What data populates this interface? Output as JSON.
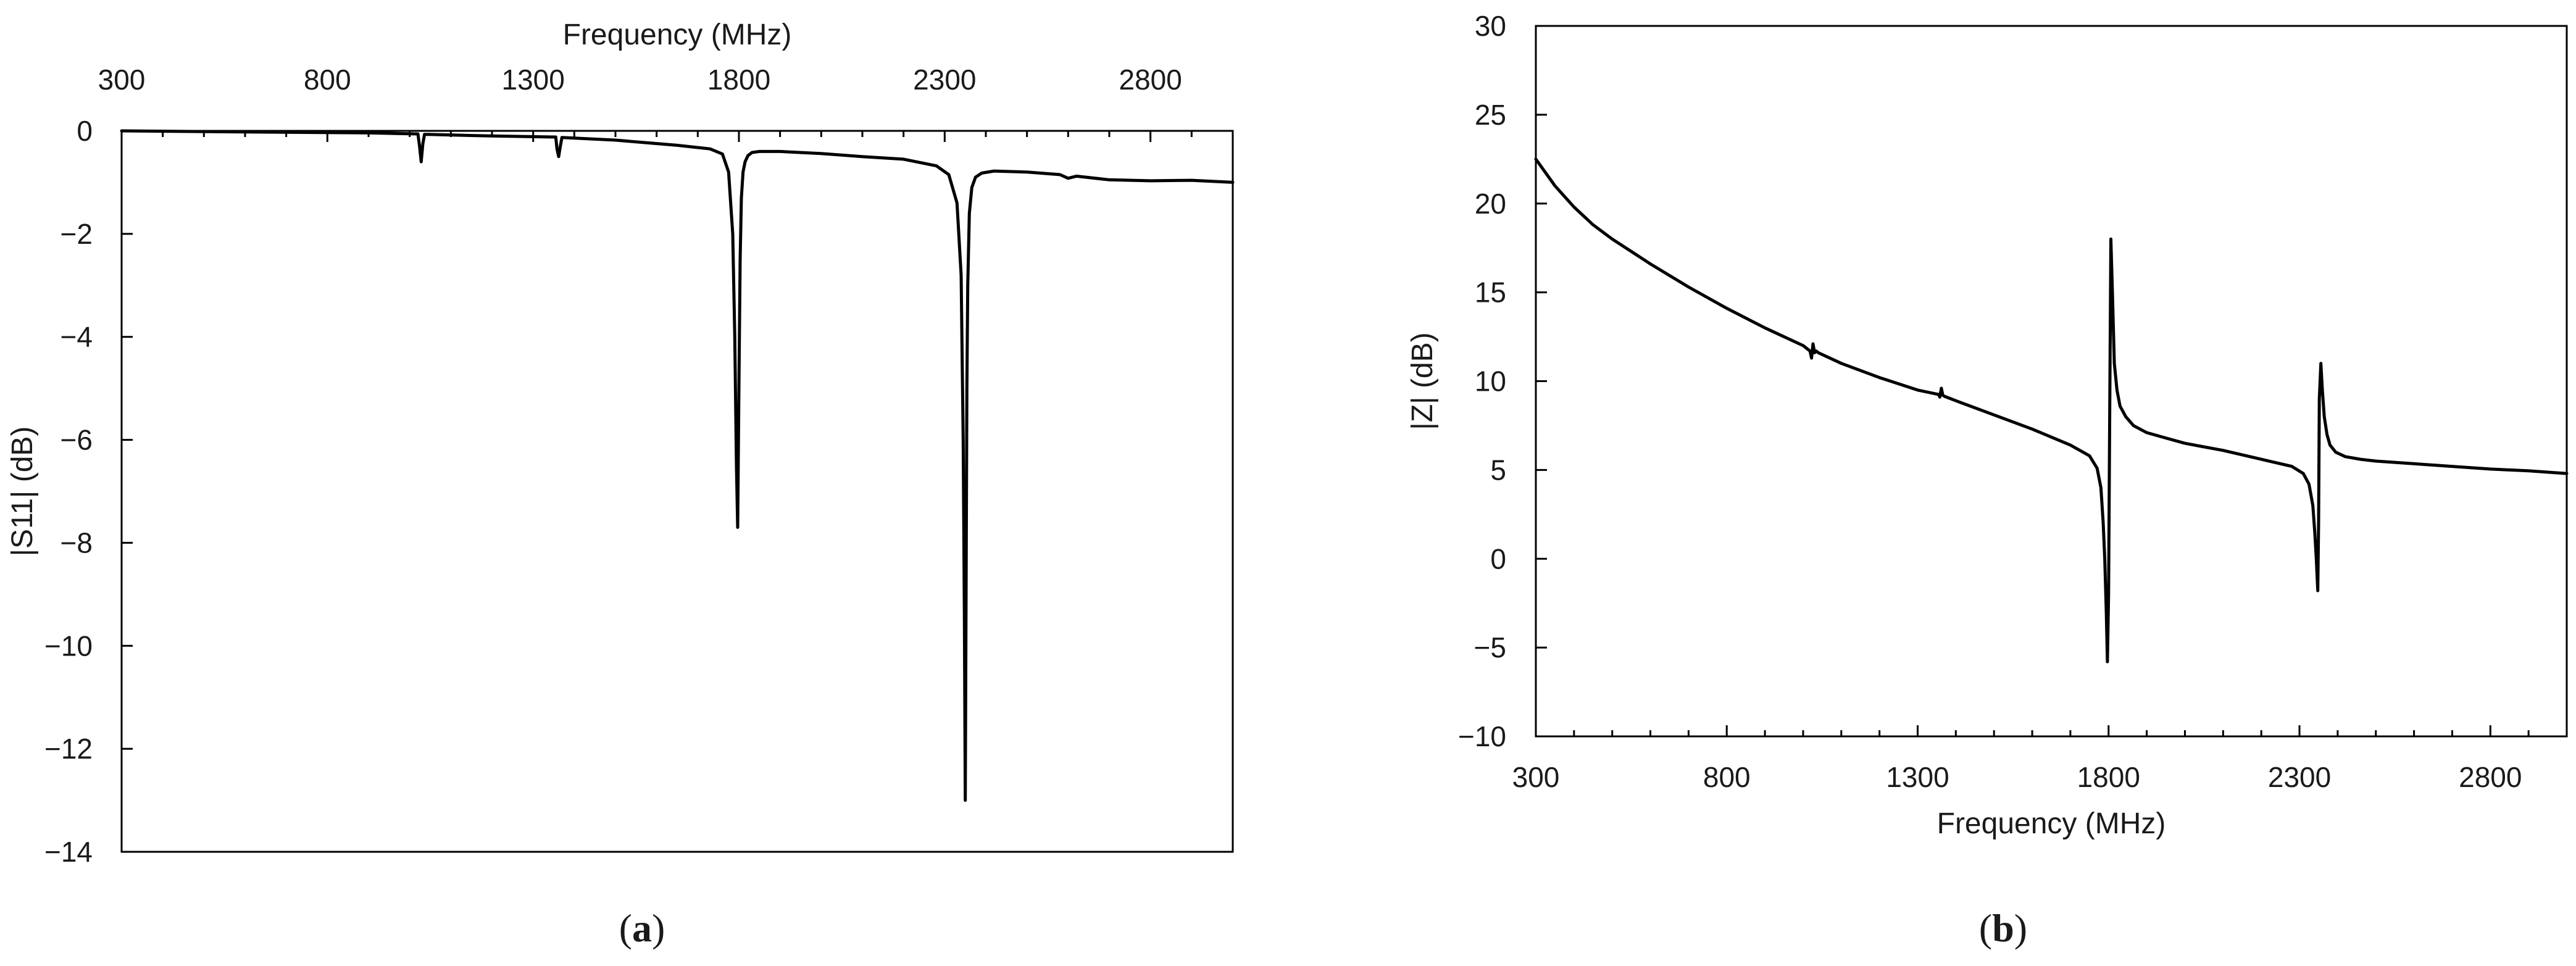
{
  "chart_data": [
    {
      "type": "line",
      "panel_label": "a",
      "title": "",
      "xlabel": "Frequency (MHz)",
      "ylabel": "|S11| (dB)",
      "x_axis_position": "top",
      "xlim": [
        300,
        3000
      ],
      "ylim": [
        -14,
        0
      ],
      "xticks": [
        300,
        800,
        1300,
        1800,
        2300,
        2800
      ],
      "xtick_labels": [
        "300",
        "800",
        "1300",
        "1800",
        "2300",
        "2800"
      ],
      "yticks": [
        0,
        -2,
        -4,
        -6,
        -8,
        -10,
        -12,
        -14
      ],
      "ytick_labels": [
        "0",
        "−2",
        "−4",
        "−6",
        "−8",
        "−10",
        "−12",
        "−14"
      ],
      "grid": false,
      "line_color": "#000000",
      "series": [
        {
          "x": [
            300,
            600,
            900,
            1020,
            1024,
            1028,
            1032,
            1036,
            1040,
            1045,
            1200,
            1355,
            1358,
            1362,
            1366,
            1370,
            1500,
            1650,
            1730,
            1760,
            1775,
            1785,
            1790,
            1794,
            1797,
            1800,
            1803,
            1806,
            1810,
            1815,
            1822,
            1832,
            1850,
            1900,
            2000,
            2100,
            2200,
            2280,
            2310,
            2330,
            2340,
            2345,
            2348,
            2350,
            2352,
            2354,
            2356,
            2360,
            2366,
            2375,
            2390,
            2420,
            2500,
            2580,
            2600,
            2620,
            2700,
            2800,
            2900,
            3000
          ],
          "y": [
            0,
            -0.02,
            -0.04,
            -0.06,
            -0.3,
            -0.6,
            -0.25,
            -0.07,
            -0.07,
            -0.07,
            -0.1,
            -0.12,
            -0.35,
            -0.5,
            -0.3,
            -0.13,
            -0.18,
            -0.28,
            -0.35,
            -0.45,
            -0.8,
            -2.0,
            -4.0,
            -6.5,
            -7.7,
            -5.0,
            -2.5,
            -1.3,
            -0.8,
            -0.6,
            -0.48,
            -0.42,
            -0.4,
            -0.4,
            -0.44,
            -0.5,
            -0.55,
            -0.68,
            -0.85,
            -1.4,
            -2.8,
            -6.0,
            -9.5,
            -13.0,
            -9.0,
            -5.0,
            -3.0,
            -1.6,
            -1.1,
            -0.9,
            -0.82,
            -0.78,
            -0.8,
            -0.85,
            -0.92,
            -0.88,
            -0.95,
            -0.97,
            -0.96,
            -1.0
          ]
        }
      ]
    },
    {
      "type": "line",
      "panel_label": "b",
      "title": "",
      "xlabel": "Frequency (MHz)",
      "ylabel": "|Z| (dB)",
      "x_axis_position": "bottom",
      "xlim": [
        300,
        3000
      ],
      "ylim": [
        -10,
        30
      ],
      "xticks": [
        300,
        800,
        1300,
        1800,
        2300,
        2800
      ],
      "xtick_labels": [
        "300",
        "800",
        "1300",
        "1800",
        "2300",
        "2800"
      ],
      "yticks": [
        30,
        25,
        20,
        15,
        10,
        5,
        0,
        -5,
        -10
      ],
      "ytick_labels": [
        "30",
        "25",
        "20",
        "15",
        "10",
        "5",
        "0",
        "−5",
        "−10"
      ],
      "grid": false,
      "line_color": "#000000",
      "series": [
        {
          "x": [
            300,
            350,
            400,
            450,
            500,
            550,
            600,
            700,
            800,
            900,
            1000,
            1018,
            1022,
            1026,
            1030,
            1034,
            1040,
            1100,
            1200,
            1300,
            1355,
            1358,
            1362,
            1366,
            1370,
            1400,
            1500,
            1600,
            1700,
            1750,
            1770,
            1780,
            1786,
            1790,
            1794,
            1797,
            1800,
            1803,
            1806,
            1810,
            1815,
            1822,
            1830,
            1845,
            1865,
            1900,
            1950,
            2000,
            2100,
            2200,
            2280,
            2310,
            2325,
            2335,
            2340,
            2344,
            2348,
            2350,
            2352,
            2356,
            2360,
            2365,
            2372,
            2380,
            2395,
            2420,
            2460,
            2500,
            2600,
            2700,
            2800,
            2900,
            3000
          ],
          "y": [
            22.5,
            21.0,
            19.8,
            18.8,
            18.0,
            17.3,
            16.6,
            15.3,
            14.1,
            13.0,
            12.0,
            11.7,
            11.3,
            12.1,
            11.6,
            11.7,
            11.6,
            11.0,
            10.2,
            9.5,
            9.25,
            9.1,
            9.6,
            9.2,
            9.15,
            8.9,
            8.1,
            7.3,
            6.4,
            5.8,
            5.1,
            4.0,
            2.0,
            0.0,
            -3.0,
            -5.8,
            -2.0,
            8.0,
            18.0,
            15.0,
            11.0,
            9.5,
            8.6,
            8.0,
            7.5,
            7.1,
            6.8,
            6.5,
            6.1,
            5.6,
            5.2,
            4.8,
            4.2,
            3.0,
            1.5,
            0.0,
            -1.8,
            2.0,
            9.0,
            11.0,
            9.5,
            8.0,
            7.0,
            6.4,
            6.0,
            5.75,
            5.6,
            5.5,
            5.35,
            5.2,
            5.05,
            4.95,
            4.8
          ]
        }
      ]
    }
  ]
}
